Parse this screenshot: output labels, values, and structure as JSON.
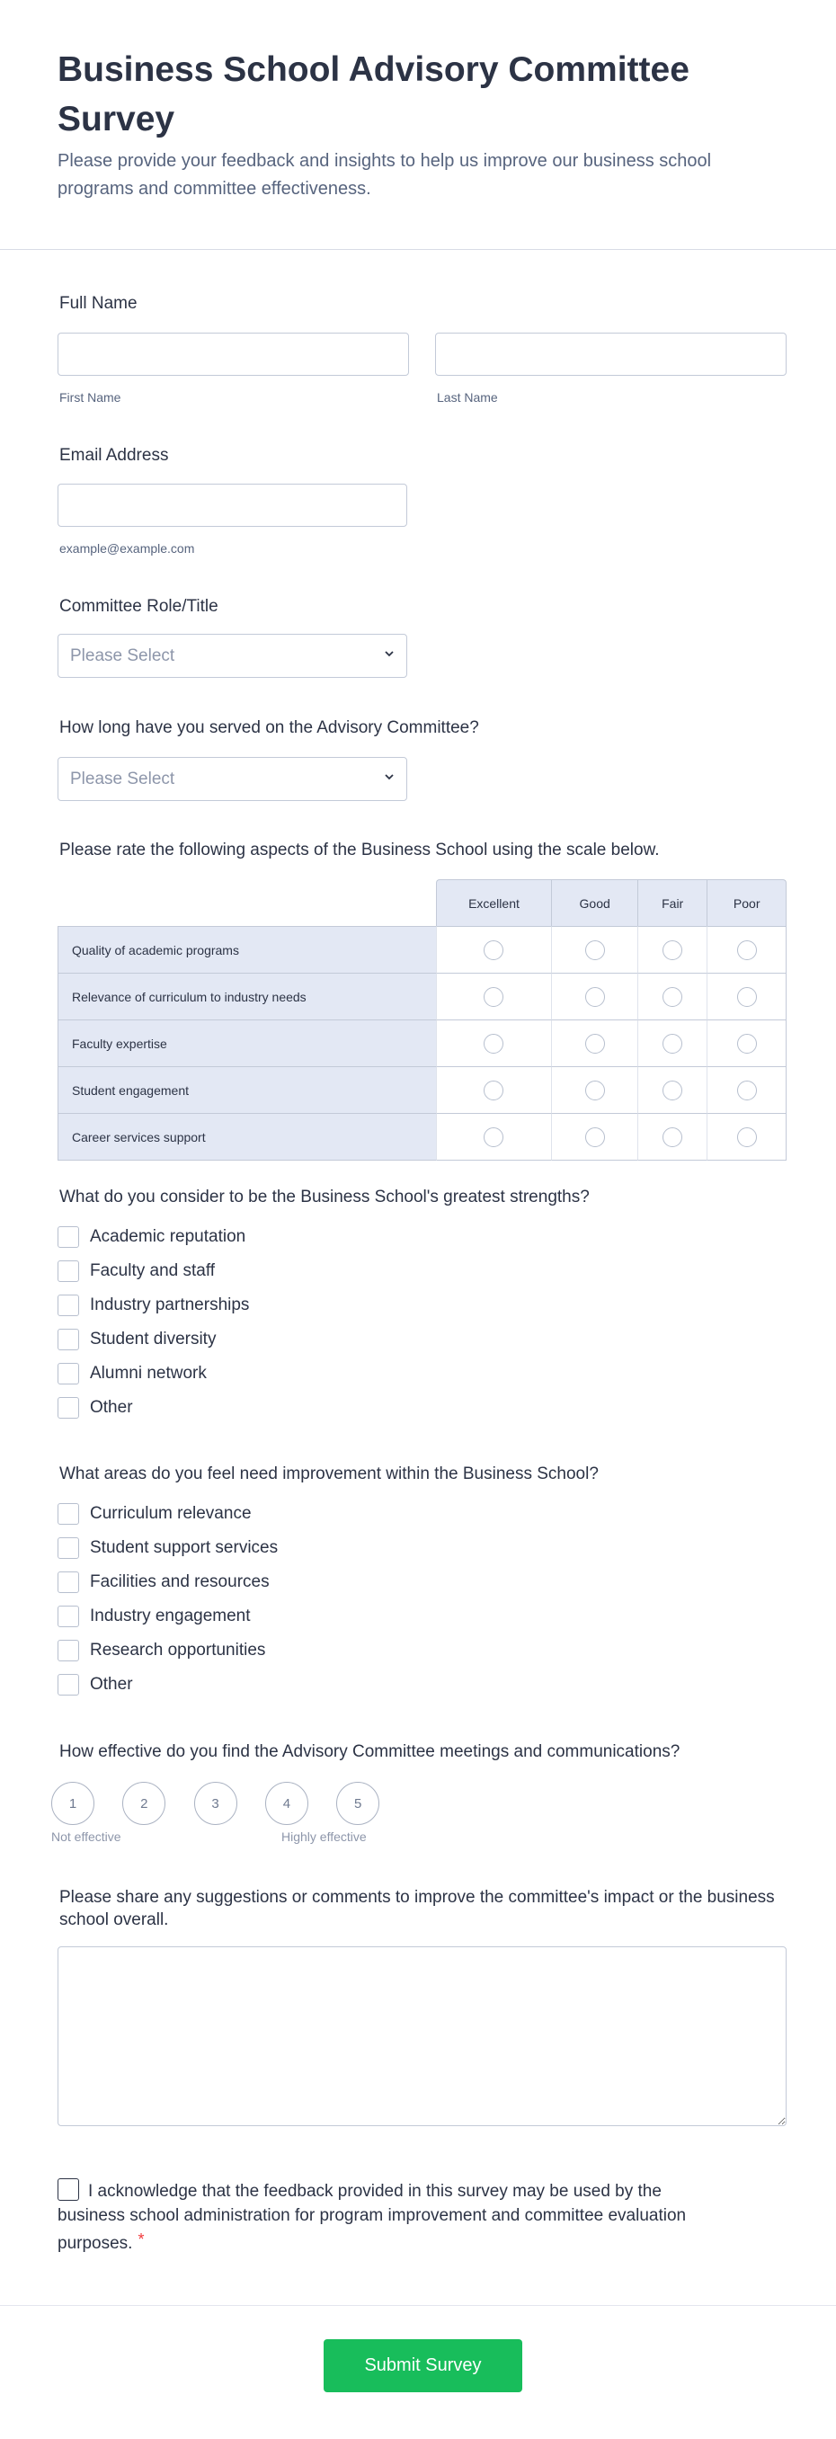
{
  "header": {
    "title": "Business School Advisory Committee Survey",
    "subtitle": "Please provide your feedback and insights to help us improve our business school programs and committee effectiveness."
  },
  "full_name": {
    "label": "Full Name",
    "first_sublabel": "First Name",
    "last_sublabel": "Last Name",
    "first_value": "",
    "last_value": ""
  },
  "email": {
    "label": "Email Address",
    "sublabel": "example@example.com",
    "value": ""
  },
  "role": {
    "label": "Committee Role/Title",
    "selected": "Please Select"
  },
  "tenure": {
    "label": "How long have you served on the Advisory Committee?",
    "selected": "Please Select"
  },
  "rating": {
    "label": "Please rate the following aspects of the Business School using the scale below.",
    "columns": [
      "Excellent",
      "Good",
      "Fair",
      "Poor"
    ],
    "rows": [
      "Quality of academic programs",
      "Relevance of curriculum to industry needs",
      "Faculty expertise",
      "Student engagement",
      "Career services support"
    ]
  },
  "strengths": {
    "label": "What do you consider to be the Business School's greatest strengths?",
    "options": [
      "Academic reputation",
      "Faculty and staff",
      "Industry partnerships",
      "Student diversity",
      "Alumni network",
      "Other"
    ]
  },
  "improvements": {
    "label": "What areas do you feel need improvement within the Business School?",
    "options": [
      "Curriculum relevance",
      "Student support services",
      "Facilities and resources",
      "Industry engagement",
      "Research opportunities",
      "Other"
    ]
  },
  "effectiveness": {
    "label": "How effective do you find the Advisory Committee meetings and communications?",
    "options": [
      "1",
      "2",
      "3",
      "4",
      "5"
    ],
    "min_label": "Not effective",
    "max_label": "Highly effective"
  },
  "comments": {
    "label": "Please share any suggestions or comments to improve the committee's impact or the business school overall.",
    "value": ""
  },
  "acknowledge": {
    "text": "I acknowledge that the feedback provided in this survey may be used by the business school administration for program improvement and committee evaluation purposes.",
    "required_mark": "*"
  },
  "submit": {
    "label": "Submit Survey"
  },
  "colors": {
    "accent": "#18bd5b",
    "text": "#2c3345",
    "table_header": "#e3e8f4",
    "required": "#f23a3c"
  }
}
